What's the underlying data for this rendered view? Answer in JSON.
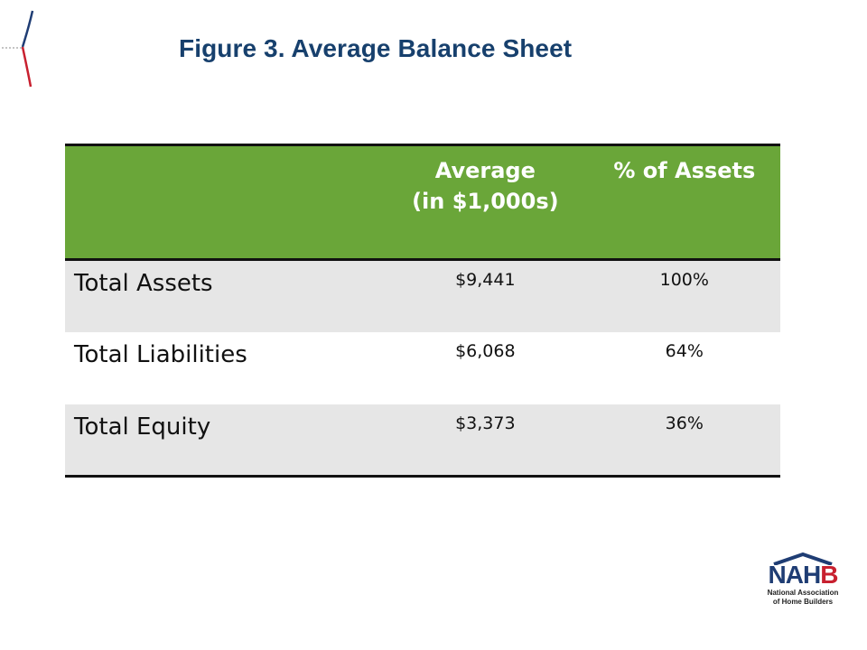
{
  "title": "Figure 3. Average Balance Sheet",
  "table": {
    "headers": [
      "",
      "Average\n(in $1,000s)",
      "% of Assets"
    ],
    "header_avg_line1": "Average",
    "header_avg_line2": "(in $1,000s)",
    "header_pct": "% of Assets",
    "rows": [
      {
        "label": "Total Assets",
        "average": "$9,441",
        "pct": "100%"
      },
      {
        "label": "Total Liabilities",
        "average": "$6,068",
        "pct": "64%"
      },
      {
        "label": "Total Equity",
        "average": "$3,373",
        "pct": "36%"
      }
    ]
  },
  "logo": {
    "letters_main": "NAH",
    "letters_accent": "B",
    "subtitle_line1": "National Association",
    "subtitle_line2": "of Home Builders"
  },
  "colors": {
    "title": "#17406d",
    "header_bg": "#6aa639",
    "row_shade": "#e6e6e6",
    "logo_blue": "#1f3d74",
    "logo_red": "#c8202f"
  }
}
